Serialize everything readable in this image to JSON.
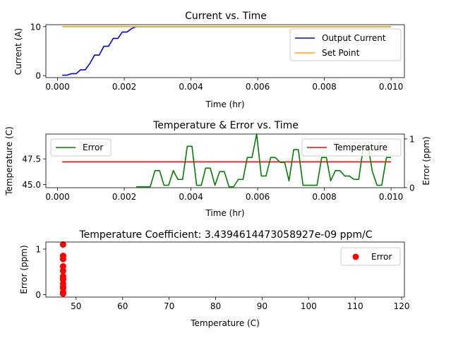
{
  "chart_data": [
    {
      "type": "line",
      "title": "Current vs. Time",
      "xlabel": "Time (hr)",
      "ylabel": "Current (A)",
      "xlim": [
        -0.00035,
        0.0104
      ],
      "ylim": [
        -0.4,
        10.4
      ],
      "xticks": [
        0.0,
        0.002,
        0.004,
        0.006,
        0.008,
        0.01
      ],
      "xtick_labels": [
        "0.000",
        "0.002",
        "0.004",
        "0.006",
        "0.008",
        "0.010"
      ],
      "yticks": [
        0,
        10
      ],
      "ytick_labels": [
        "0",
        "10"
      ],
      "legend": "top-right",
      "series": [
        {
          "name": "Output Current",
          "color": "#0000ff",
          "x": [
            0.00014,
            0.00028,
            0.00042,
            0.00056,
            0.00069,
            0.00083,
            0.00097,
            0.00111,
            0.00125,
            0.00139,
            0.00153,
            0.00167,
            0.00181,
            0.00194,
            0.00208,
            0.00222,
            0.00236,
            0.0025,
            0.003,
            0.004,
            0.005,
            0.006,
            0.007,
            0.008,
            0.009,
            0.01
          ],
          "y": [
            0.1,
            0.1,
            0.4,
            0.4,
            1.2,
            1.2,
            2.5,
            4.2,
            4.2,
            6.0,
            6.0,
            7.6,
            7.6,
            8.9,
            8.9,
            9.6,
            10.0,
            10.0,
            10.0,
            10.0,
            10.0,
            10.0,
            10.0,
            10.0,
            10.0,
            10.0
          ]
        },
        {
          "name": "Set Point",
          "color": "#ffa500",
          "x": [
            0.00014,
            0.01
          ],
          "y": [
            10,
            10
          ]
        }
      ]
    },
    {
      "type": "line",
      "title": "Temperature & Error vs. Time",
      "xlabel": "Time (hr)",
      "ylabel": "Temperature (C)",
      "y2label": "Error (ppm)",
      "xlim": [
        -0.00035,
        0.0104
      ],
      "ylim": [
        44.7,
        49.9
      ],
      "y2lim": [
        0,
        1.1
      ],
      "xticks": [
        0.0,
        0.002,
        0.004,
        0.006,
        0.008,
        0.01
      ],
      "xtick_labels": [
        "0.000",
        "0.002",
        "0.004",
        "0.006",
        "0.008",
        "0.010"
      ],
      "yticks": [
        45.0,
        47.5
      ],
      "ytick_labels": [
        "45.0",
        "47.5"
      ],
      "y2ticks": [
        0,
        1
      ],
      "y2tick_labels": [
        "0",
        "1"
      ],
      "legend_left": "Error",
      "legend_right": "Temperature",
      "series": [
        {
          "name": "Temperature",
          "axis": "left",
          "color": "#ff0000",
          "x": [
            0.00014,
            0.01
          ],
          "y": [
            47.2,
            47.2
          ]
        },
        {
          "name": "Error",
          "axis": "right",
          "color": "#008000",
          "x": [
            0.00236,
            0.0025,
            0.00264,
            0.00278,
            0.00292,
            0.00306,
            0.00319,
            0.00333,
            0.00347,
            0.00361,
            0.00375,
            0.00389,
            0.00403,
            0.00417,
            0.00431,
            0.00444,
            0.00458,
            0.00472,
            0.00486,
            0.005,
            0.00514,
            0.00528,
            0.00542,
            0.00556,
            0.00569,
            0.00583,
            0.00597,
            0.00611,
            0.00625,
            0.00639,
            0.00653,
            0.00667,
            0.00681,
            0.00694,
            0.00708,
            0.00722,
            0.00736,
            0.0075,
            0.00764,
            0.00778,
            0.00792,
            0.00806,
            0.00819,
            0.00833,
            0.00847,
            0.00861,
            0.00875,
            0.00889,
            0.00903,
            0.00917,
            0.00931,
            0.00944,
            0.00958,
            0.00972,
            0.00986,
            0.01
          ],
          "y": [
            0.02,
            0.02,
            0.02,
            0.02,
            0.35,
            0.35,
            0.05,
            0.05,
            0.35,
            0.17,
            0.17,
            0.85,
            0.85,
            0.05,
            0.05,
            0.4,
            0.4,
            0.05,
            0.33,
            0.33,
            0.02,
            0.02,
            0.17,
            0.17,
            0.62,
            0.62,
            1.1,
            0.24,
            0.24,
            0.62,
            0.62,
            0.52,
            0.52,
            0.14,
            0.78,
            0.78,
            0.05,
            0.05,
            0.05,
            0.05,
            0.62,
            0.62,
            0.14,
            0.35,
            0.35,
            0.24,
            0.24,
            0.17,
            0.17,
            0.85,
            0.85,
            0.33,
            0.05,
            0.05,
            0.62,
            0.62
          ]
        }
      ]
    },
    {
      "type": "scatter",
      "title": "Temperature Coefficient: 3.4394614473058927e-09 ppm/C",
      "xlabel": "Temperature (C)",
      "ylabel": "Error (ppm)",
      "xlim": [
        43.5,
        120.6
      ],
      "ylim": [
        -0.055,
        1.155
      ],
      "xticks": [
        50,
        60,
        70,
        80,
        90,
        100,
        110,
        120
      ],
      "xtick_labels": [
        "50",
        "60",
        "70",
        "80",
        "90",
        "100",
        "110",
        "120"
      ],
      "yticks": [
        0,
        1
      ],
      "ytick_labels": [
        "0",
        "1"
      ],
      "legend": "top-right",
      "series": [
        {
          "name": "Error",
          "color": "#ff0000",
          "x": [
            47.2,
            47.2,
            47.2,
            47.2,
            47.2,
            47.2,
            47.2,
            47.2,
            47.2,
            47.2,
            47.2,
            47.2,
            47.2,
            47.2
          ],
          "y": [
            0.02,
            0.05,
            0.14,
            0.17,
            0.24,
            0.33,
            0.35,
            0.4,
            0.52,
            0.62,
            0.78,
            0.85,
            0.85,
            1.1
          ]
        }
      ]
    }
  ]
}
